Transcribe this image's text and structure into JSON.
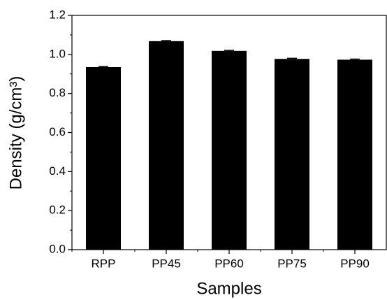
{
  "chart_data": {
    "type": "bar",
    "x_label": "Samples",
    "y_label": "Density (g/cm³)",
    "categories": [
      "RPP",
      "PP45",
      "PP60",
      "PP75",
      "PP90"
    ],
    "values": [
      0.935,
      1.068,
      1.018,
      0.977,
      0.973
    ],
    "errors": [
      0.003,
      0.003,
      0.003,
      0.003,
      0.003
    ],
    "color": "#000000",
    "ylim": [
      0,
      1.2
    ],
    "yticks": [
      {
        "value": 0,
        "label": "0.0"
      },
      0.2,
      0.4,
      0.6,
      0.8,
      {
        "value": 1,
        "label": "1.0"
      },
      1.2
    ]
  }
}
